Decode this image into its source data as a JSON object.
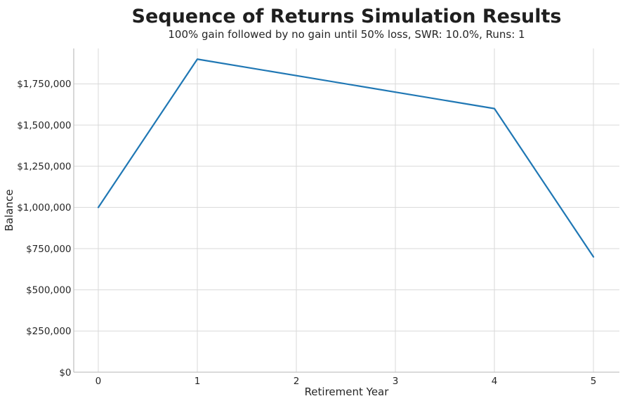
{
  "chart_data": {
    "type": "line",
    "title": "Sequence of Returns Simulation Results",
    "subtitle": "100% gain followed by no gain until 50% loss, SWR: 10.0%, Runs: 1",
    "xlabel": "Retirement Year",
    "ylabel": "Balance",
    "x": [
      0,
      1,
      2,
      3,
      4,
      5
    ],
    "series": [
      {
        "values": [
          1000000,
          1900000,
          1800000,
          1700000,
          1600000,
          700000
        ],
        "color": "#1f77b4"
      }
    ],
    "x_ticks": {
      "values": [
        0,
        1,
        2,
        3,
        4,
        5
      ],
      "labels": [
        "0",
        "1",
        "2",
        "3",
        "4",
        "5"
      ]
    },
    "y_ticks": {
      "values": [
        0,
        250000,
        500000,
        750000,
        1000000,
        1250000,
        1500000,
        1750000
      ],
      "labels": [
        "$0",
        "$250,000",
        "$500,000",
        "$750,000",
        "$1,000,000",
        "$1,250,000",
        "$1,500,000",
        "$1,750,000"
      ]
    },
    "xlim": [
      -0.248,
      5.262
    ],
    "ylim": [
      0,
      1965000
    ],
    "grid": true,
    "legend": false,
    "colors": {
      "line": "#1f77b4",
      "grid": "#d9d9d9",
      "spine": "#c3c3c3",
      "text": "#262626"
    }
  }
}
